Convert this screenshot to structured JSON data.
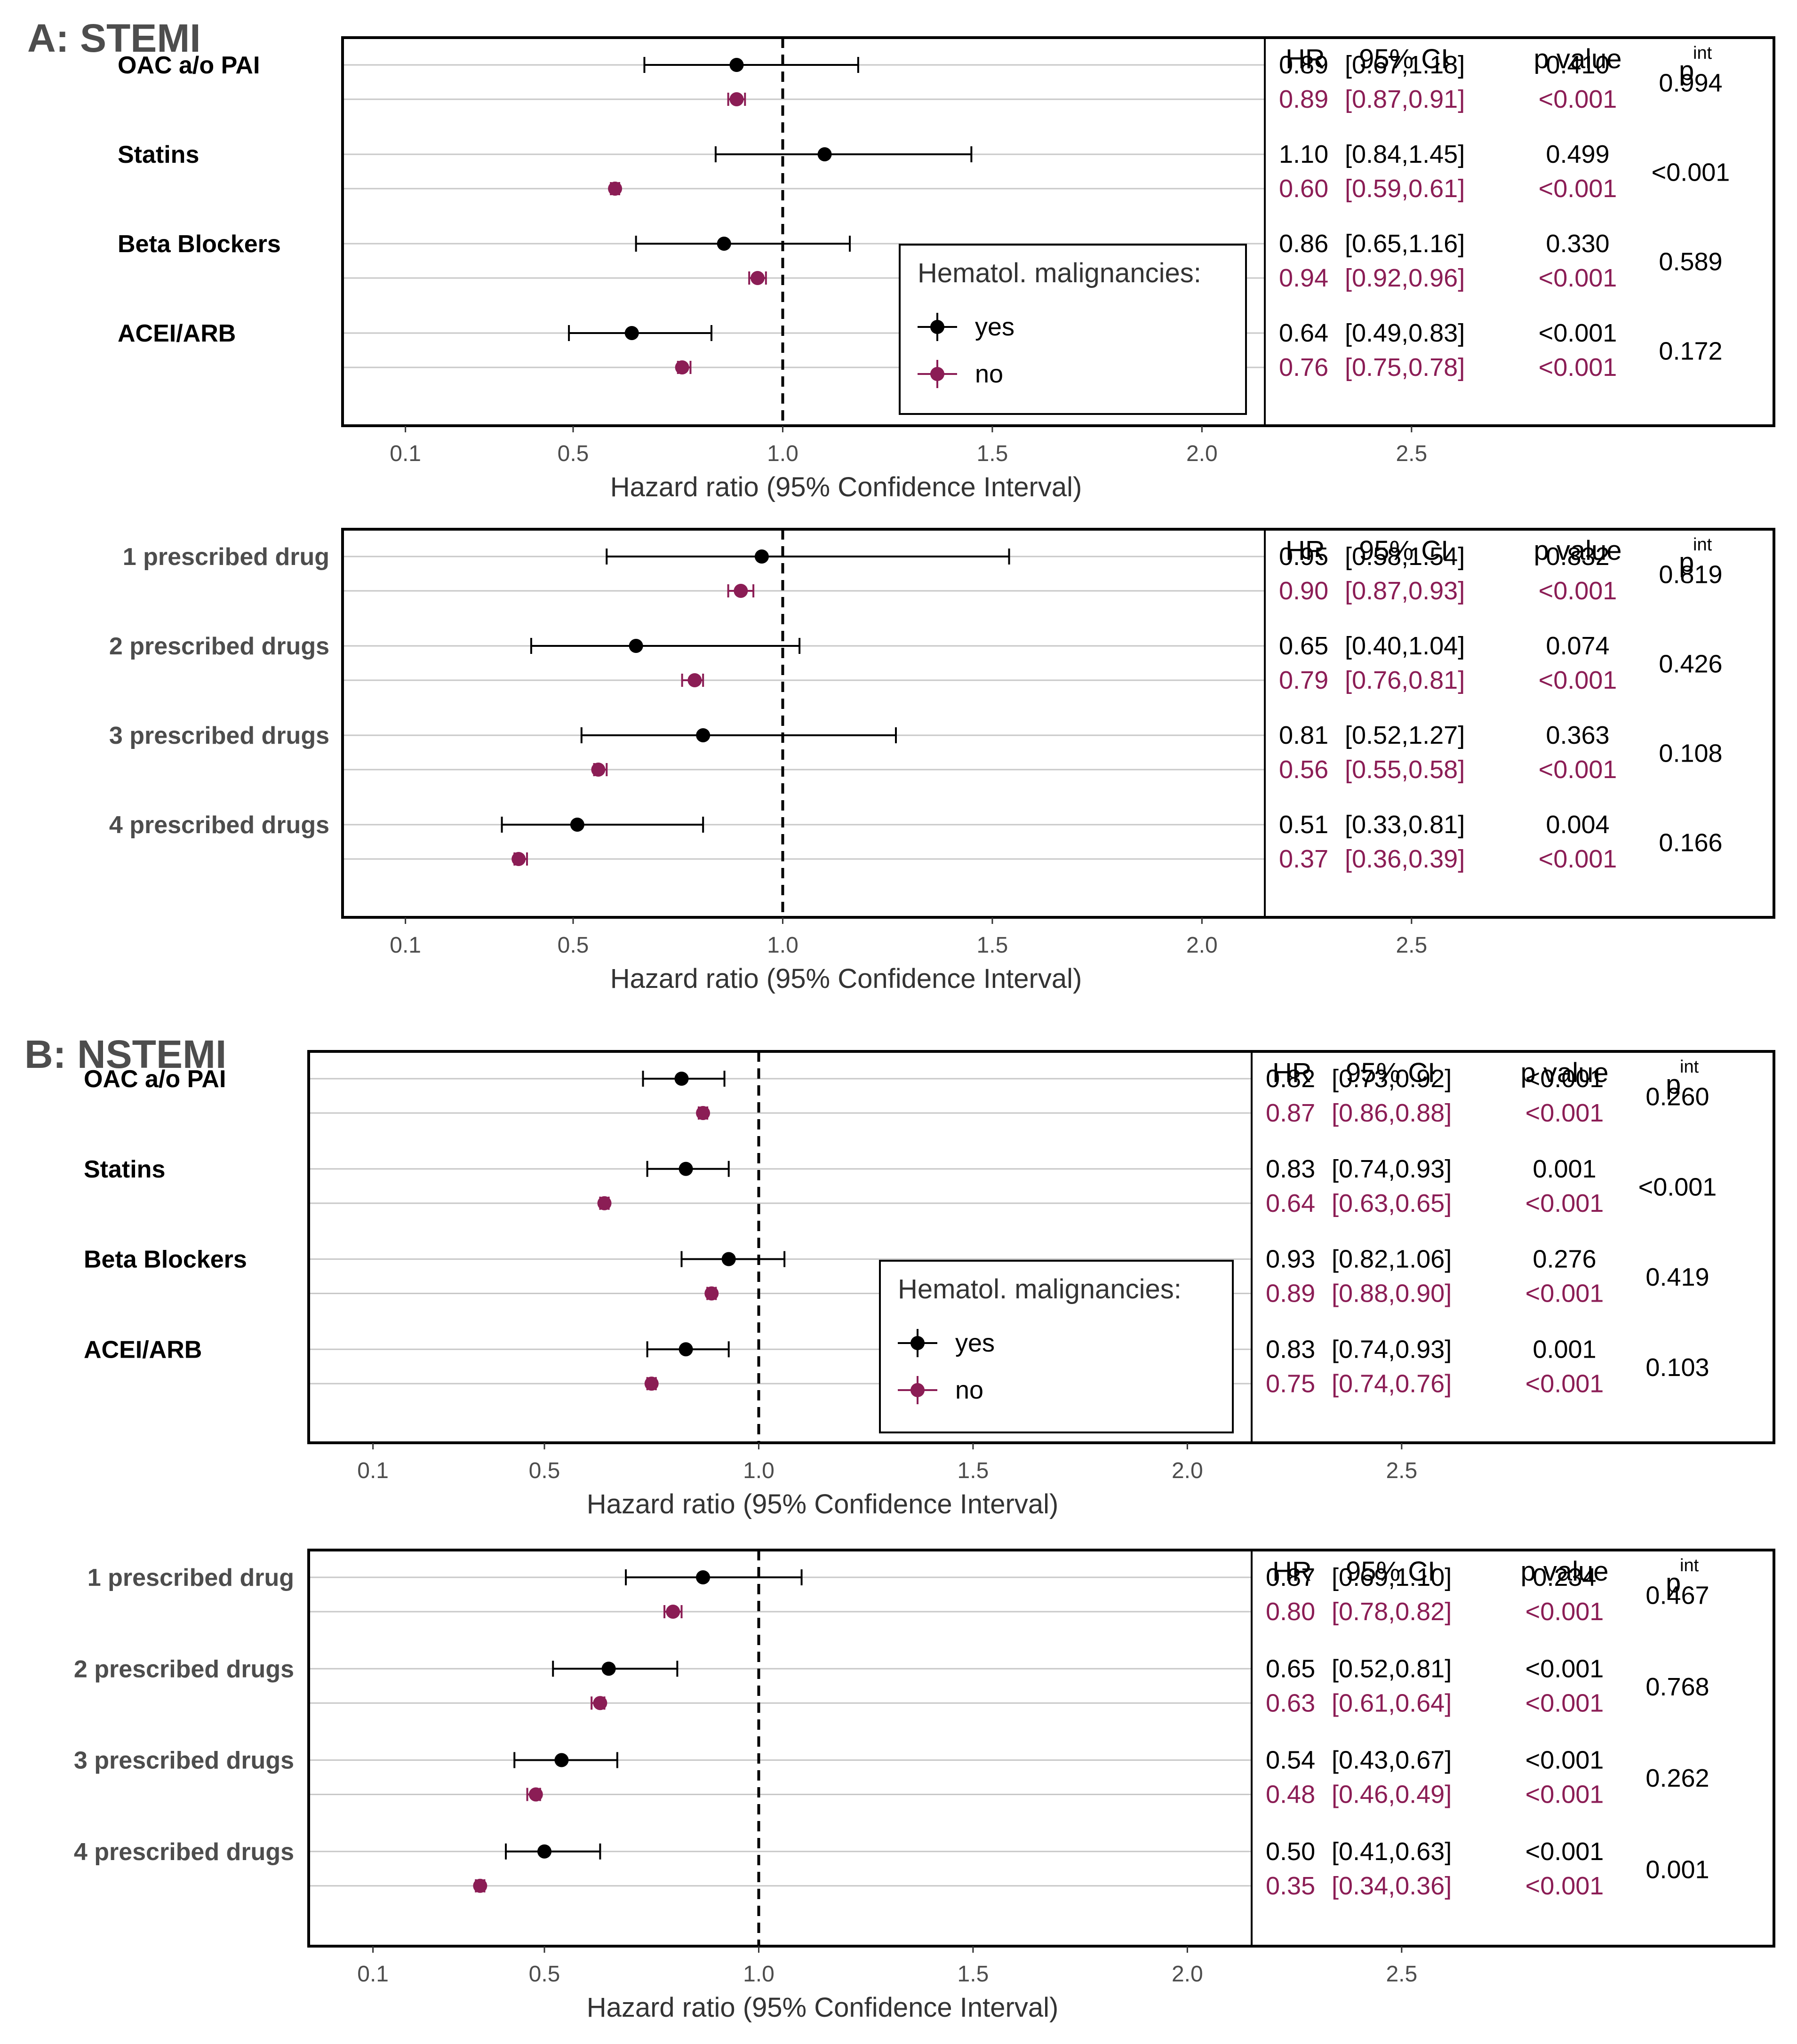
{
  "colors": {
    "yes": "#000000",
    "no": "#8b1d55",
    "grid": "#c8c8c8",
    "axis_text": "#4d4d4d",
    "heading": "#4d4d4d"
  },
  "sections": [
    {
      "heading": "A: STEMI"
    },
    {
      "heading": "B: NSTEMI"
    }
  ],
  "chart_data": [
    {
      "type": "forest",
      "section": "A: STEMI",
      "xlabel": "Hazard ratio (95% Confidence Interval)",
      "xticks": [
        "0.1",
        "0.5",
        "1.0",
        "1.5",
        "2.0",
        "2.5"
      ],
      "xlim": [
        -0.05,
        2.15
      ],
      "reference_line": 1.0,
      "table_headers": {
        "hr": "HR",
        "ci": "95% CI",
        "p": "p value",
        "pint": "p",
        "pint_sup": "int"
      },
      "legend": {
        "title": "Hematol. malignancies:",
        "items": [
          "yes",
          "no"
        ]
      },
      "label_style": "black",
      "groups": [
        {
          "label": "OAC a/o PAI",
          "pint": "0.994",
          "yes": {
            "hr": 0.89,
            "lo": 0.67,
            "hi": 1.18,
            "hr_text": "0.89",
            "ci_text": "[0.67,1.18]",
            "p_text": "0.410"
          },
          "no": {
            "hr": 0.89,
            "lo": 0.87,
            "hi": 0.91,
            "hr_text": "0.89",
            "ci_text": "[0.87,0.91]",
            "p_text": "<0.001"
          }
        },
        {
          "label": "Statins",
          "pint": "<0.001",
          "yes": {
            "hr": 1.1,
            "lo": 0.84,
            "hi": 1.45,
            "hr_text": "1.10",
            "ci_text": "[0.84,1.45]",
            "p_text": "0.499"
          },
          "no": {
            "hr": 0.6,
            "lo": 0.59,
            "hi": 0.61,
            "hr_text": "0.60",
            "ci_text": "[0.59,0.61]",
            "p_text": "<0.001"
          }
        },
        {
          "label": "Beta Blockers",
          "pint": "0.589",
          "yes": {
            "hr": 0.86,
            "lo": 0.65,
            "hi": 1.16,
            "hr_text": "0.86",
            "ci_text": "[0.65,1.16]",
            "p_text": "0.330"
          },
          "no": {
            "hr": 0.94,
            "lo": 0.92,
            "hi": 0.96,
            "hr_text": "0.94",
            "ci_text": "[0.92,0.96]",
            "p_text": "<0.001"
          }
        },
        {
          "label": "ACEI/ARB",
          "pint": "0.172",
          "yes": {
            "hr": 0.64,
            "lo": 0.49,
            "hi": 0.83,
            "hr_text": "0.64",
            "ci_text": "[0.49,0.83]",
            "p_text": "<0.001"
          },
          "no": {
            "hr": 0.76,
            "lo": 0.75,
            "hi": 0.78,
            "hr_text": "0.76",
            "ci_text": "[0.75,0.78]",
            "p_text": "<0.001"
          }
        }
      ]
    },
    {
      "type": "forest",
      "section": "A: STEMI",
      "xlabel": "Hazard ratio (95% Confidence Interval)",
      "xticks": [
        "0.1",
        "0.5",
        "1.0",
        "1.5",
        "2.0",
        "2.5"
      ],
      "xlim": [
        -0.05,
        2.15
      ],
      "reference_line": 1.0,
      "table_headers": {
        "hr": "HR",
        "ci": "95% CI",
        "p": "p value",
        "pint": "p",
        "pint_sup": "int"
      },
      "label_style": "gray",
      "groups": [
        {
          "label": "1 prescribed drug",
          "pint": "0.819",
          "yes": {
            "hr": 0.95,
            "lo": 0.58,
            "hi": 1.54,
            "hr_text": "0.95",
            "ci_text": "[0.58,1.54]",
            "p_text": "0.832"
          },
          "no": {
            "hr": 0.9,
            "lo": 0.87,
            "hi": 0.93,
            "hr_text": "0.90",
            "ci_text": "[0.87,0.93]",
            "p_text": "<0.001"
          }
        },
        {
          "label": "2 prescribed drugs",
          "pint": "0.426",
          "yes": {
            "hr": 0.65,
            "lo": 0.4,
            "hi": 1.04,
            "hr_text": "0.65",
            "ci_text": "[0.40,1.04]",
            "p_text": "0.074"
          },
          "no": {
            "hr": 0.79,
            "lo": 0.76,
            "hi": 0.81,
            "hr_text": "0.79",
            "ci_text": "[0.76,0.81]",
            "p_text": "<0.001"
          }
        },
        {
          "label": "3 prescribed drugs",
          "pint": "0.108",
          "yes": {
            "hr": 0.81,
            "lo": 0.52,
            "hi": 1.27,
            "hr_text": "0.81",
            "ci_text": "[0.52,1.27]",
            "p_text": "0.363"
          },
          "no": {
            "hr": 0.56,
            "lo": 0.55,
            "hi": 0.58,
            "hr_text": "0.56",
            "ci_text": "[0.55,0.58]",
            "p_text": "<0.001"
          }
        },
        {
          "label": "4 prescribed drugs",
          "pint": "0.166",
          "yes": {
            "hr": 0.51,
            "lo": 0.33,
            "hi": 0.81,
            "hr_text": "0.51",
            "ci_text": "[0.33,0.81]",
            "p_text": "0.004"
          },
          "no": {
            "hr": 0.37,
            "lo": 0.36,
            "hi": 0.39,
            "hr_text": "0.37",
            "ci_text": "[0.36,0.39]",
            "p_text": "<0.001"
          }
        }
      ]
    },
    {
      "type": "forest",
      "section": "B: NSTEMI",
      "xlabel": "Hazard ratio (95% Confidence Interval)",
      "xticks": [
        "0.1",
        "0.5",
        "1.0",
        "1.5",
        "2.0",
        "2.5"
      ],
      "xlim": [
        -0.05,
        2.15
      ],
      "reference_line": 1.0,
      "table_headers": {
        "hr": "HR",
        "ci": "95% CI",
        "p": "p value",
        "pint": "p",
        "pint_sup": "int"
      },
      "legend": {
        "title": "Hematol. malignancies:",
        "items": [
          "yes",
          "no"
        ]
      },
      "label_style": "black",
      "groups": [
        {
          "label": "OAC a/o PAI",
          "pint": "0.260",
          "yes": {
            "hr": 0.82,
            "lo": 0.73,
            "hi": 0.92,
            "hr_text": "0.82",
            "ci_text": "[0.73,0.92]",
            "p_text": "<0.001"
          },
          "no": {
            "hr": 0.87,
            "lo": 0.86,
            "hi": 0.88,
            "hr_text": "0.87",
            "ci_text": "[0.86,0.88]",
            "p_text": "<0.001"
          }
        },
        {
          "label": "Statins",
          "pint": "<0.001",
          "yes": {
            "hr": 0.83,
            "lo": 0.74,
            "hi": 0.93,
            "hr_text": "0.83",
            "ci_text": "[0.74,0.93]",
            "p_text": "0.001"
          },
          "no": {
            "hr": 0.64,
            "lo": 0.63,
            "hi": 0.65,
            "hr_text": "0.64",
            "ci_text": "[0.63,0.65]",
            "p_text": "<0.001"
          }
        },
        {
          "label": "Beta Blockers",
          "pint": "0.419",
          "yes": {
            "hr": 0.93,
            "lo": 0.82,
            "hi": 1.06,
            "hr_text": "0.93",
            "ci_text": "[0.82,1.06]",
            "p_text": "0.276"
          },
          "no": {
            "hr": 0.89,
            "lo": 0.88,
            "hi": 0.9,
            "hr_text": "0.89",
            "ci_text": "[0.88,0.90]",
            "p_text": "<0.001"
          }
        },
        {
          "label": "ACEI/ARB",
          "pint": "0.103",
          "yes": {
            "hr": 0.83,
            "lo": 0.74,
            "hi": 0.93,
            "hr_text": "0.83",
            "ci_text": "[0.74,0.93]",
            "p_text": "0.001"
          },
          "no": {
            "hr": 0.75,
            "lo": 0.74,
            "hi": 0.76,
            "hr_text": "0.75",
            "ci_text": "[0.74,0.76]",
            "p_text": "<0.001"
          }
        }
      ]
    },
    {
      "type": "forest",
      "section": "B: NSTEMI",
      "xlabel": "Hazard ratio (95% Confidence Interval)",
      "xticks": [
        "0.1",
        "0.5",
        "1.0",
        "1.5",
        "2.0",
        "2.5"
      ],
      "xlim": [
        -0.05,
        2.15
      ],
      "reference_line": 1.0,
      "table_headers": {
        "hr": "HR",
        "ci": "95% CI",
        "p": "p value",
        "pint": "p",
        "pint_sup": "int"
      },
      "label_style": "gray",
      "groups": [
        {
          "label": "1 prescribed drug",
          "pint": "0.467",
          "yes": {
            "hr": 0.87,
            "lo": 0.69,
            "hi": 1.1,
            "hr_text": "0.87",
            "ci_text": "[0.69,1.10]",
            "p_text": "0.234"
          },
          "no": {
            "hr": 0.8,
            "lo": 0.78,
            "hi": 0.82,
            "hr_text": "0.80",
            "ci_text": "[0.78,0.82]",
            "p_text": "<0.001"
          }
        },
        {
          "label": "2 prescribed drugs",
          "pint": "0.768",
          "yes": {
            "hr": 0.65,
            "lo": 0.52,
            "hi": 0.81,
            "hr_text": "0.65",
            "ci_text": "[0.52,0.81]",
            "p_text": "<0.001"
          },
          "no": {
            "hr": 0.63,
            "lo": 0.61,
            "hi": 0.64,
            "hr_text": "0.63",
            "ci_text": "[0.61,0.64]",
            "p_text": "<0.001"
          }
        },
        {
          "label": "3 prescribed drugs",
          "pint": "0.262",
          "yes": {
            "hr": 0.54,
            "lo": 0.43,
            "hi": 0.67,
            "hr_text": "0.54",
            "ci_text": "[0.43,0.67]",
            "p_text": "<0.001"
          },
          "no": {
            "hr": 0.48,
            "lo": 0.46,
            "hi": 0.49,
            "hr_text": "0.48",
            "ci_text": "[0.46,0.49]",
            "p_text": "<0.001"
          }
        },
        {
          "label": "4 prescribed drugs",
          "pint": "0.001",
          "yes": {
            "hr": 0.5,
            "lo": 0.41,
            "hi": 0.63,
            "hr_text": "0.50",
            "ci_text": "[0.41,0.63]",
            "p_text": "<0.001"
          },
          "no": {
            "hr": 0.35,
            "lo": 0.34,
            "hi": 0.36,
            "hr_text": "0.35",
            "ci_text": "[0.34,0.36]",
            "p_text": "<0.001"
          }
        }
      ]
    }
  ]
}
